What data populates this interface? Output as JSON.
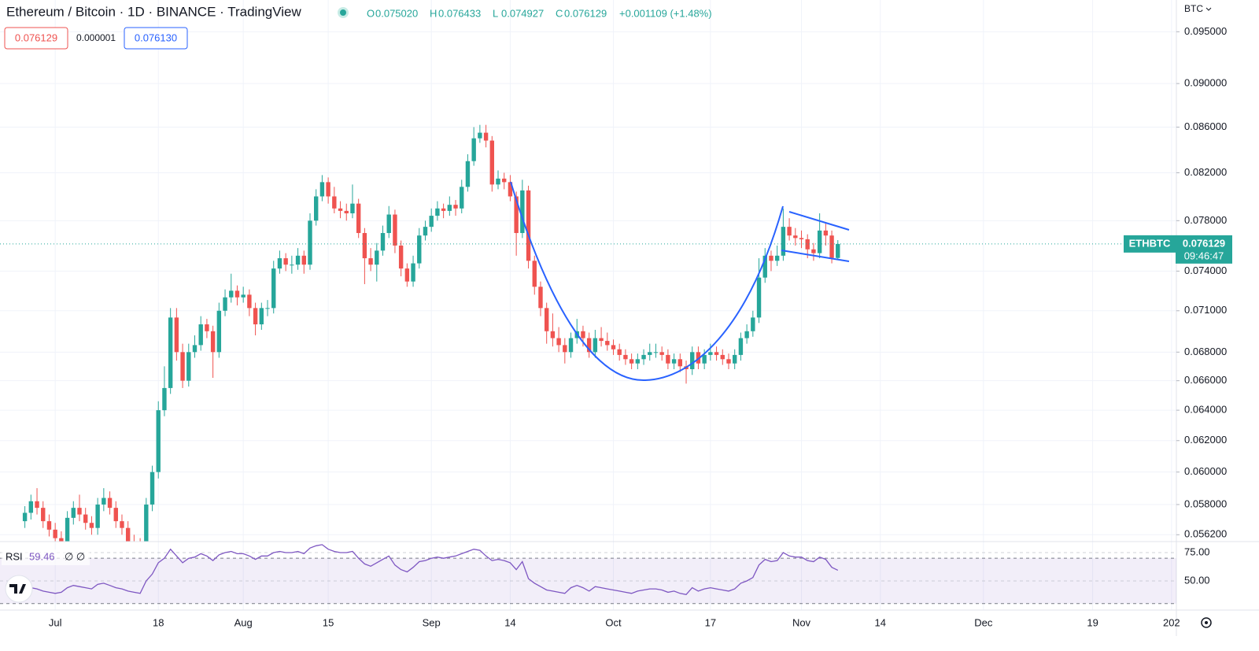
{
  "header": {
    "title": "Ethereum / Bitcoin · 1D · BINANCE · TradingView",
    "ohlc": [
      [
        "O",
        "0.075020"
      ],
      [
        "H",
        "0.076433"
      ],
      [
        "L",
        "0.074927"
      ],
      [
        "C",
        "0.076129"
      ]
    ],
    "change": "+0.001109 (+1.48%)",
    "bid": "0.076129",
    "spread": "0.000001",
    "ask": "0.076130",
    "currency": "BTC",
    "symbol_label": "ETHBTC",
    "last_price": "0.076129",
    "countdown": "09:46:47"
  },
  "chart_data": {
    "type": "candlestick",
    "log": true,
    "grid": true,
    "up_color": "#26a69a",
    "down_color": "#ef5350",
    "xlim": [
      -4.1,
      189.8
    ],
    "ylim": [
      0.0558,
      0.0982
    ],
    "xticks": [
      {
        "value": 5,
        "label": "Jul"
      },
      {
        "value": 22,
        "label": "18"
      },
      {
        "value": 36,
        "label": "Aug"
      },
      {
        "value": 50,
        "label": "15"
      },
      {
        "value": 67,
        "label": "Sep"
      },
      {
        "value": 80,
        "label": "14"
      },
      {
        "value": 97,
        "label": "Oct"
      },
      {
        "value": 113,
        "label": "17"
      },
      {
        "value": 128,
        "label": "Nov"
      },
      {
        "value": 141,
        "label": "14"
      },
      {
        "value": 158,
        "label": "Dec"
      },
      {
        "value": 176,
        "label": "19"
      },
      {
        "value": 189,
        "label": "202"
      }
    ],
    "yticks": [
      {
        "value": 0.095,
        "label": "0.095000"
      },
      {
        "value": 0.09,
        "label": "0.090000"
      },
      {
        "value": 0.086,
        "label": "0.086000"
      },
      {
        "value": 0.082,
        "label": "0.082000"
      },
      {
        "value": 0.078,
        "label": "0.078000"
      },
      {
        "value": 0.074,
        "label": "0.074000"
      },
      {
        "value": 0.071,
        "label": "0.071000"
      },
      {
        "value": 0.068,
        "label": "0.068000"
      },
      {
        "value": 0.066,
        "label": "0.066000"
      },
      {
        "value": 0.064,
        "label": "0.064000"
      },
      {
        "value": 0.062,
        "label": "0.062000"
      },
      {
        "value": 0.06,
        "label": "0.060000"
      },
      {
        "value": 0.058,
        "label": "0.058000"
      },
      {
        "value": 0.0562,
        "label": "0.056200"
      }
    ],
    "candles": [
      [
        0.057,
        0.0579,
        0.0566,
        0.0575
      ],
      [
        0.0575,
        0.0586,
        0.0571,
        0.0582
      ],
      [
        0.0582,
        0.059,
        0.0574,
        0.0578
      ],
      [
        0.0578,
        0.0582,
        0.0566,
        0.057
      ],
      [
        0.057,
        0.0574,
        0.0561,
        0.0565
      ],
      [
        0.0565,
        0.0569,
        0.0556,
        0.056
      ],
      [
        0.056,
        0.0564,
        0.0554,
        0.0558
      ],
      [
        0.0558,
        0.0576,
        0.0554,
        0.0572
      ],
      [
        0.0572,
        0.0582,
        0.0568,
        0.0578
      ],
      [
        0.0578,
        0.0586,
        0.057,
        0.0574
      ],
      [
        0.0574,
        0.0578,
        0.0565,
        0.0569
      ],
      [
        0.0569,
        0.0573,
        0.0562,
        0.0566
      ],
      [
        0.0566,
        0.0584,
        0.0562,
        0.058
      ],
      [
        0.058,
        0.059,
        0.0576,
        0.0584
      ],
      [
        0.0584,
        0.0588,
        0.0574,
        0.0578
      ],
      [
        0.0578,
        0.0582,
        0.0566,
        0.057
      ],
      [
        0.057,
        0.0574,
        0.0562,
        0.0566
      ],
      [
        0.0566,
        0.057,
        0.0554,
        0.0558
      ],
      [
        0.0558,
        0.0562,
        0.0552,
        0.0556
      ],
      [
        0.0556,
        0.056,
        0.0549,
        0.0553
      ],
      [
        0.0553,
        0.0584,
        0.0549,
        0.058
      ],
      [
        0.058,
        0.0604,
        0.0576,
        0.06
      ],
      [
        0.06,
        0.0646,
        0.0596,
        0.064
      ],
      [
        0.064,
        0.067,
        0.0636,
        0.0655
      ],
      [
        0.0655,
        0.0712,
        0.0651,
        0.0705
      ],
      [
        0.0705,
        0.0712,
        0.0674,
        0.068
      ],
      [
        0.068,
        0.0686,
        0.0655,
        0.066
      ],
      [
        0.066,
        0.0686,
        0.0656,
        0.068
      ],
      [
        0.068,
        0.0692,
        0.0676,
        0.0685
      ],
      [
        0.0685,
        0.0706,
        0.0681,
        0.07
      ],
      [
        0.07,
        0.0704,
        0.069,
        0.0695
      ],
      [
        0.0695,
        0.0699,
        0.0662,
        0.068
      ],
      [
        0.068,
        0.0716,
        0.0676,
        0.071
      ],
      [
        0.071,
        0.0726,
        0.0706,
        0.072
      ],
      [
        0.072,
        0.0738,
        0.0716,
        0.0725
      ],
      [
        0.0725,
        0.0729,
        0.0714,
        0.072
      ],
      [
        0.072,
        0.0728,
        0.0716,
        0.0722
      ],
      [
        0.0722,
        0.0726,
        0.0706,
        0.0712
      ],
      [
        0.0712,
        0.0716,
        0.0692,
        0.07
      ],
      [
        0.07,
        0.0716,
        0.0696,
        0.0712
      ],
      [
        0.0712,
        0.0718,
        0.0706,
        0.0712
      ],
      [
        0.0712,
        0.0748,
        0.0708,
        0.0742
      ],
      [
        0.0742,
        0.0756,
        0.0738,
        0.075
      ],
      [
        0.075,
        0.0754,
        0.074,
        0.0745
      ],
      [
        0.0745,
        0.0752,
        0.0738,
        0.0745
      ],
      [
        0.0745,
        0.0758,
        0.0741,
        0.0752
      ],
      [
        0.0752,
        0.0756,
        0.0738,
        0.0745
      ],
      [
        0.0745,
        0.0786,
        0.0741,
        0.078
      ],
      [
        0.078,
        0.0806,
        0.0776,
        0.08
      ],
      [
        0.08,
        0.0818,
        0.0796,
        0.0812
      ],
      [
        0.0812,
        0.0816,
        0.0794,
        0.08
      ],
      [
        0.08,
        0.0808,
        0.0786,
        0.079
      ],
      [
        0.079,
        0.0796,
        0.0782,
        0.0788
      ],
      [
        0.0788,
        0.0794,
        0.078,
        0.0786
      ],
      [
        0.0786,
        0.081,
        0.0782,
        0.0794
      ],
      [
        0.0794,
        0.0798,
        0.0766,
        0.077
      ],
      [
        0.077,
        0.0774,
        0.073,
        0.075
      ],
      [
        0.075,
        0.0758,
        0.074,
        0.0745
      ],
      [
        0.0745,
        0.0762,
        0.0732,
        0.0756
      ],
      [
        0.0756,
        0.0776,
        0.0752,
        0.077
      ],
      [
        0.077,
        0.0792,
        0.0766,
        0.0785
      ],
      [
        0.0785,
        0.0789,
        0.0754,
        0.076
      ],
      [
        0.076,
        0.0764,
        0.0736,
        0.0742
      ],
      [
        0.0742,
        0.0746,
        0.0728,
        0.0732
      ],
      [
        0.0732,
        0.0752,
        0.0728,
        0.0746
      ],
      [
        0.0746,
        0.0774,
        0.0742,
        0.0768
      ],
      [
        0.0768,
        0.078,
        0.0764,
        0.0775
      ],
      [
        0.0775,
        0.079,
        0.0771,
        0.0784
      ],
      [
        0.0784,
        0.0796,
        0.078,
        0.079
      ],
      [
        0.079,
        0.0794,
        0.0782,
        0.0788
      ],
      [
        0.0788,
        0.08,
        0.0784,
        0.0793
      ],
      [
        0.0793,
        0.0797,
        0.0784,
        0.079
      ],
      [
        0.079,
        0.0814,
        0.0786,
        0.0808
      ],
      [
        0.0808,
        0.0836,
        0.0804,
        0.083
      ],
      [
        0.083,
        0.086,
        0.0826,
        0.085
      ],
      [
        0.085,
        0.0862,
        0.0846,
        0.0855
      ],
      [
        0.0855,
        0.0862,
        0.0842,
        0.0848
      ],
      [
        0.0848,
        0.0852,
        0.0804,
        0.081
      ],
      [
        0.081,
        0.0822,
        0.0806,
        0.0815
      ],
      [
        0.0815,
        0.082,
        0.0806,
        0.0812
      ],
      [
        0.0812,
        0.0818,
        0.0796,
        0.08
      ],
      [
        0.08,
        0.0804,
        0.0752,
        0.077
      ],
      [
        0.077,
        0.0814,
        0.0766,
        0.0805
      ],
      [
        0.0805,
        0.0809,
        0.0742,
        0.0748
      ],
      [
        0.0748,
        0.0752,
        0.0722,
        0.0728
      ],
      [
        0.0728,
        0.0732,
        0.0706,
        0.0712
      ],
      [
        0.0712,
        0.0716,
        0.0686,
        0.0695
      ],
      [
        0.0695,
        0.0708,
        0.0684,
        0.069
      ],
      [
        0.069,
        0.0698,
        0.068,
        0.0685
      ],
      [
        0.0685,
        0.069,
        0.0672,
        0.068
      ],
      [
        0.068,
        0.0694,
        0.0676,
        0.069
      ],
      [
        0.069,
        0.0704,
        0.0686,
        0.0695
      ],
      [
        0.0695,
        0.0699,
        0.0684,
        0.069
      ],
      [
        0.069,
        0.0694,
        0.0676,
        0.068
      ],
      [
        0.068,
        0.0696,
        0.0676,
        0.069
      ],
      [
        0.069,
        0.0698,
        0.0684,
        0.0688
      ],
      [
        0.0688,
        0.0694,
        0.0681,
        0.0685
      ],
      [
        0.0685,
        0.0689,
        0.0678,
        0.0682
      ],
      [
        0.0682,
        0.0686,
        0.0674,
        0.0678
      ],
      [
        0.0678,
        0.0682,
        0.0671,
        0.0675
      ],
      [
        0.0675,
        0.0679,
        0.0668,
        0.0672
      ],
      [
        0.0672,
        0.0679,
        0.0668,
        0.0675
      ],
      [
        0.0675,
        0.0682,
        0.0671,
        0.0678
      ],
      [
        0.0678,
        0.0686,
        0.0674,
        0.068
      ],
      [
        0.068,
        0.0686,
        0.0676,
        0.068
      ],
      [
        0.068,
        0.0684,
        0.0674,
        0.0678
      ],
      [
        0.0678,
        0.0682,
        0.0668,
        0.0672
      ],
      [
        0.0672,
        0.0679,
        0.0668,
        0.0675
      ],
      [
        0.0675,
        0.0679,
        0.0666,
        0.067
      ],
      [
        0.067,
        0.0674,
        0.0658,
        0.0668
      ],
      [
        0.0668,
        0.0684,
        0.0664,
        0.068
      ],
      [
        0.068,
        0.0684,
        0.0668,
        0.0672
      ],
      [
        0.0672,
        0.0682,
        0.0668,
        0.0678
      ],
      [
        0.0678,
        0.0686,
        0.0674,
        0.068
      ],
      [
        0.068,
        0.0684,
        0.0674,
        0.0678
      ],
      [
        0.0678,
        0.0682,
        0.0671,
        0.0675
      ],
      [
        0.0675,
        0.0679,
        0.0668,
        0.0672
      ],
      [
        0.0672,
        0.0682,
        0.0668,
        0.0678
      ],
      [
        0.0678,
        0.0694,
        0.0674,
        0.069
      ],
      [
        0.069,
        0.07,
        0.0686,
        0.0695
      ],
      [
        0.0695,
        0.071,
        0.0691,
        0.0705
      ],
      [
        0.0705,
        0.075,
        0.0701,
        0.0735
      ],
      [
        0.0735,
        0.0758,
        0.0731,
        0.0752
      ],
      [
        0.0752,
        0.0756,
        0.074,
        0.0748
      ],
      [
        0.0748,
        0.076,
        0.0744,
        0.0752
      ],
      [
        0.0752,
        0.079,
        0.0748,
        0.0775
      ],
      [
        0.0775,
        0.0782,
        0.0764,
        0.0768
      ],
      [
        0.0768,
        0.0774,
        0.076,
        0.0766
      ],
      [
        0.0766,
        0.0772,
        0.0758,
        0.0765
      ],
      [
        0.0765,
        0.0769,
        0.075,
        0.0757
      ],
      [
        0.0757,
        0.0762,
        0.0748,
        0.0754
      ],
      [
        0.0754,
        0.0786,
        0.075,
        0.0772
      ],
      [
        0.0772,
        0.0778,
        0.076,
        0.0768
      ],
      [
        0.0768,
        0.0772,
        0.0746,
        0.07502
      ],
      [
        0.07502,
        0.076433,
        0.074927,
        0.076129
      ]
    ],
    "rsi": {
      "name": "RSI",
      "params": "∅ ∅",
      "color": "#7e57c2",
      "ylim": [
        24.3,
        84.7
      ],
      "band": [
        30,
        70
      ],
      "yticks": [
        {
          "value": 75,
          "label": "75.00"
        },
        {
          "value": 50,
          "label": "50.00"
        }
      ],
      "values": [
        42,
        44,
        43,
        41,
        40,
        39,
        40,
        44,
        46,
        45,
        44,
        43,
        47,
        48,
        46,
        44,
        43,
        41,
        40,
        39,
        50,
        56,
        66,
        70,
        78,
        72,
        66,
        70,
        71,
        74,
        72,
        68,
        73,
        75,
        76,
        74,
        74,
        72,
        69,
        72,
        72,
        75,
        76,
        75,
        75,
        76,
        74,
        79,
        81,
        82,
        78,
        76,
        75,
        75,
        76,
        70,
        65,
        63,
        66,
        69,
        72,
        64,
        60,
        58,
        62,
        67,
        68,
        70,
        71,
        70,
        71,
        72,
        74,
        76,
        78,
        77,
        72,
        68,
        69,
        68,
        66,
        60,
        67,
        52,
        48,
        45,
        42,
        41,
        40,
        39,
        44,
        46,
        44,
        41,
        45,
        44,
        43,
        42,
        41,
        40,
        39,
        41,
        42,
        43,
        43,
        42,
        40,
        41,
        39,
        38,
        44,
        41,
        43,
        44,
        43,
        42,
        41,
        43,
        48,
        50,
        53,
        64,
        69,
        67,
        68,
        75,
        72,
        71,
        71,
        68,
        67,
        71,
        69,
        62,
        59.46
      ]
    }
  }
}
